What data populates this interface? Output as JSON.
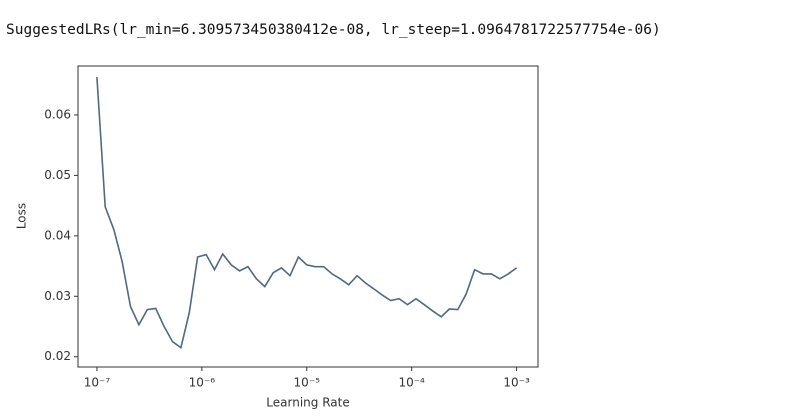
{
  "output_text": "SuggestedLRs(lr_min=6.309573450380412e-08, lr_steep=1.0964781722577754e-06)",
  "chart_data": {
    "type": "line",
    "xlabel": "Learning Rate",
    "ylabel": "Loss",
    "xscale": "log",
    "xlim": [
      6.6e-08,
      0.0016
    ],
    "ylim": [
      0.0183,
      0.0681
    ],
    "xticks": [
      {
        "value": 1e-07,
        "label": "10⁻⁷"
      },
      {
        "value": 1e-06,
        "label": "10⁻⁶"
      },
      {
        "value": 1e-05,
        "label": "10⁻⁵"
      },
      {
        "value": 0.0001,
        "label": "10⁻⁴"
      },
      {
        "value": 0.001,
        "label": "10⁻³"
      }
    ],
    "yticks": [
      0.02,
      0.03,
      0.04,
      0.05,
      0.06
    ],
    "x": [
      1e-07,
      1.2e-07,
      1.45e-07,
      1.74e-07,
      2.09e-07,
      2.51e-07,
      3.02e-07,
      3.63e-07,
      4.37e-07,
      5.25e-07,
      6.31e-07,
      7.59e-07,
      9.12e-07,
      1.1e-06,
      1.32e-06,
      1.58e-06,
      1.91e-06,
      2.29e-06,
      2.75e-06,
      3.31e-06,
      3.98e-06,
      4.79e-06,
      5.75e-06,
      6.92e-06,
      8.32e-06,
      1e-05,
      1.2e-05,
      1.45e-05,
      1.74e-05,
      2.09e-05,
      2.51e-05,
      3.02e-05,
      3.63e-05,
      4.37e-05,
      5.25e-05,
      6.31e-05,
      7.59e-05,
      9.12e-05,
      0.00011,
      0.000132,
      0.000158,
      0.000191,
      0.000229,
      0.000275,
      0.000331,
      0.000398,
      0.000479,
      0.000575,
      0.000692,
      0.000832,
      0.001
    ],
    "series": [
      {
        "color": "#506a82",
        "values": [
          0.0663,
          0.0448,
          0.041,
          0.0357,
          0.0283,
          0.0253,
          0.0278,
          0.028,
          0.025,
          0.0225,
          0.0215,
          0.0273,
          0.0365,
          0.0369,
          0.0344,
          0.037,
          0.0352,
          0.0342,
          0.0349,
          0.0329,
          0.0316,
          0.0339,
          0.0347,
          0.0334,
          0.0365,
          0.0352,
          0.0349,
          0.0349,
          0.0337,
          0.0329,
          0.0319,
          0.0334,
          0.0322,
          0.0312,
          0.0302,
          0.0293,
          0.0296,
          0.0286,
          0.0296,
          0.0286,
          0.0276,
          0.0266,
          0.0279,
          0.0278,
          0.0304,
          0.0344,
          0.0337,
          0.0337,
          0.0329,
          0.0337,
          0.0347
        ]
      }
    ]
  }
}
